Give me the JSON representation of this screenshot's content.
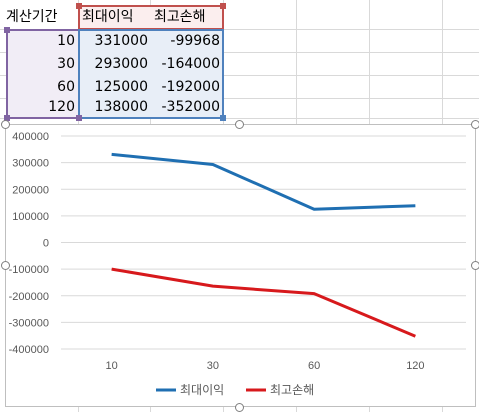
{
  "sheet": {
    "headers": [
      "계산기간",
      "최대이익",
      "최고손해"
    ],
    "rows": [
      [
        "10",
        "331000",
        "-99968"
      ],
      [
        "30",
        "293000",
        "-164000"
      ],
      [
        "60",
        "125000",
        "-192000"
      ],
      [
        "120",
        "138000",
        "-352000"
      ]
    ]
  },
  "chart_data": {
    "type": "line",
    "categories": [
      "10",
      "30",
      "60",
      "120"
    ],
    "series": [
      {
        "name": "최대이익",
        "values": [
          331000,
          293000,
          125000,
          138000
        ],
        "color": "#1f6fb2"
      },
      {
        "name": "최고손해",
        "values": [
          -99968,
          -164000,
          -192000,
          -352000
        ],
        "color": "#d7191c"
      }
    ],
    "ylim": [
      -400000,
      400000
    ],
    "yticks": [
      "400000",
      "300000",
      "200000",
      "100000",
      "0",
      "-100000",
      "-200000",
      "-300000",
      "-400000"
    ],
    "grid": true,
    "legend": "bottom",
    "title": "",
    "xlabel": "",
    "ylabel": ""
  }
}
